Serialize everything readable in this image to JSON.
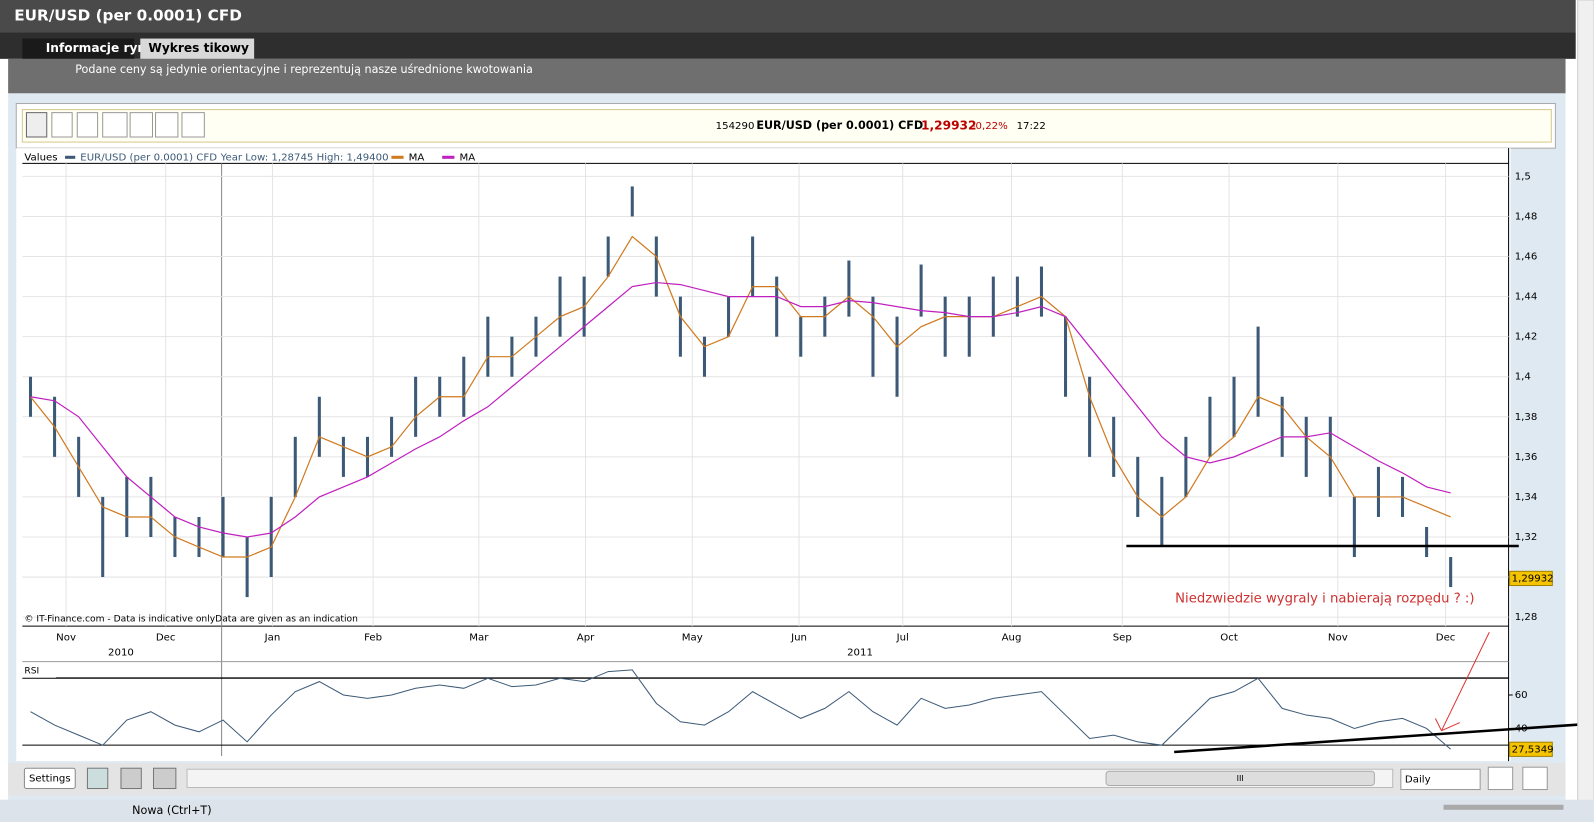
{
  "window": {
    "title": "EUR/USD (per 0.0001) CFD",
    "tabs": [
      "Informacje rynkowe",
      "Wykres tikowy"
    ],
    "note": "Podane ceny są jedynie orientacyjne i reprezentują nasze uśrednione kwotowania"
  },
  "header": {
    "id": "154290",
    "name": "EUR/USD (per 0.0001) CFD",
    "price": "1,29932",
    "change": "-0,22%",
    "time": "17:22"
  },
  "legend": {
    "label": "Values",
    "series": "EUR/USD (per 0.0001) CFD",
    "range": "Year Low: 1,28745 High: 1,49400"
  },
  "footer": {
    "settings": "Settings",
    "period": "Daily",
    "grip": "III",
    "new_tab": "Nowa (Ctrl+T)"
  },
  "chart_data": [
    {
      "type": "ohlc",
      "watermark": "© IT-Finance.com - Data is indicative onlyData are given as an indication",
      "annotation": "Niedzwiedzie wygraly i nabierają rozpędu ? :)",
      "last_value": {
        "value": 1.29932,
        "label": "1,29932"
      },
      "months": [
        "Nov",
        "Dec",
        "Jan",
        "Feb",
        "Mar",
        "Apr",
        "May",
        "Jun",
        "Jul",
        "Aug",
        "Sep",
        "Oct",
        "Nov",
        "Dec"
      ],
      "years": [
        "2010",
        "2011"
      ],
      "ylim": [
        1.2755,
        1.5065
      ],
      "yticks": [
        {
          "value": 1.28,
          "label": "1,28"
        },
        {
          "value": 1.3,
          "label": "1,3"
        },
        {
          "value": 1.32,
          "label": "1,32"
        },
        {
          "value": 1.34,
          "label": "1,34"
        },
        {
          "value": 1.36,
          "label": "1,36"
        },
        {
          "value": 1.38,
          "label": "1,38"
        },
        {
          "value": 1.4,
          "label": "1,4"
        },
        {
          "value": 1.42,
          "label": "1,42"
        },
        {
          "value": 1.44,
          "label": "1,44"
        },
        {
          "value": 1.46,
          "label": "1,46"
        },
        {
          "value": 1.48,
          "label": "1,48"
        },
        {
          "value": 1.5,
          "label": "1,5"
        }
      ],
      "grid": true,
      "color": "#3c5a78",
      "high": [
        1.4,
        1.39,
        1.37,
        1.34,
        1.35,
        1.35,
        1.33,
        1.33,
        1.34,
        1.32,
        1.34,
        1.37,
        1.39,
        1.37,
        1.37,
        1.38,
        1.4,
        1.4,
        1.41,
        1.43,
        1.42,
        1.43,
        1.45,
        1.45,
        1.47,
        1.495,
        1.47,
        1.44,
        1.42,
        1.44,
        1.47,
        1.45,
        1.43,
        1.44,
        1.458,
        1.44,
        1.43,
        1.456,
        1.44,
        1.44,
        1.45,
        1.45,
        1.455,
        1.43,
        1.4,
        1.38,
        1.36,
        1.35,
        1.37,
        1.39,
        1.4,
        1.425,
        1.39,
        1.38,
        1.38,
        1.34,
        1.355,
        1.35,
        1.325,
        1.31
      ],
      "low": [
        1.38,
        1.36,
        1.34,
        1.3,
        1.32,
        1.32,
        1.31,
        1.31,
        1.31,
        1.29,
        1.3,
        1.34,
        1.36,
        1.35,
        1.35,
        1.36,
        1.37,
        1.38,
        1.38,
        1.4,
        1.4,
        1.41,
        1.42,
        1.42,
        1.45,
        1.48,
        1.44,
        1.41,
        1.4,
        1.42,
        1.44,
        1.42,
        1.41,
        1.42,
        1.43,
        1.4,
        1.39,
        1.43,
        1.41,
        1.41,
        1.42,
        1.43,
        1.43,
        1.39,
        1.36,
        1.35,
        1.33,
        1.315,
        1.34,
        1.36,
        1.37,
        1.38,
        1.36,
        1.35,
        1.34,
        1.31,
        1.33,
        1.33,
        1.31,
        1.295
      ],
      "series": [
        {
          "name": "MA",
          "color": "#d07a20",
          "values": [
            1.39,
            1.375,
            1.355,
            1.335,
            1.33,
            1.33,
            1.32,
            1.315,
            1.31,
            1.31,
            1.315,
            1.34,
            1.37,
            1.365,
            1.36,
            1.365,
            1.38,
            1.39,
            1.39,
            1.41,
            1.41,
            1.42,
            1.43,
            1.435,
            1.45,
            1.47,
            1.46,
            1.43,
            1.415,
            1.42,
            1.445,
            1.445,
            1.43,
            1.43,
            1.44,
            1.43,
            1.415,
            1.425,
            1.43,
            1.43,
            1.43,
            1.435,
            1.44,
            1.43,
            1.39,
            1.36,
            1.34,
            1.33,
            1.34,
            1.36,
            1.37,
            1.39,
            1.385,
            1.37,
            1.36,
            1.34,
            1.34,
            1.34,
            1.335,
            1.33
          ]
        },
        {
          "name": "MA",
          "color": "#c020c0",
          "values": [
            1.39,
            1.388,
            1.38,
            1.365,
            1.35,
            1.34,
            1.33,
            1.325,
            1.322,
            1.32,
            1.322,
            1.33,
            1.34,
            1.345,
            1.35,
            1.357,
            1.364,
            1.37,
            1.378,
            1.385,
            1.395,
            1.405,
            1.415,
            1.425,
            1.435,
            1.445,
            1.447,
            1.446,
            1.443,
            1.44,
            1.44,
            1.44,
            1.435,
            1.435,
            1.438,
            1.437,
            1.435,
            1.433,
            1.432,
            1.43,
            1.43,
            1.432,
            1.435,
            1.43,
            1.415,
            1.4,
            1.385,
            1.37,
            1.36,
            1.357,
            1.36,
            1.365,
            1.37,
            1.37,
            1.372,
            1.365,
            1.358,
            1.352,
            1.345,
            1.342
          ]
        }
      ]
    },
    {
      "type": "line",
      "title": "RSI",
      "last_value": {
        "value": 27.5349,
        "label": "27,5349"
      },
      "ylim": [
        23.5,
        77.5
      ],
      "yticks": [
        40,
        60
      ],
      "levels": [
        30,
        70
      ],
      "color": "#3c5a78",
      "values": [
        50,
        42,
        36,
        30,
        45,
        50,
        42,
        38,
        45,
        32,
        48,
        62,
        68,
        60,
        58,
        60,
        64,
        66,
        64,
        70,
        65,
        66,
        70,
        68,
        74,
        75,
        55,
        44,
        42,
        50,
        62,
        54,
        46,
        52,
        62,
        50,
        42,
        58,
        52,
        54,
        58,
        60,
        62,
        48,
        34,
        36,
        32,
        30,
        44,
        58,
        62,
        70,
        52,
        48,
        46,
        40,
        44,
        46,
        40,
        27.5349
      ]
    }
  ]
}
